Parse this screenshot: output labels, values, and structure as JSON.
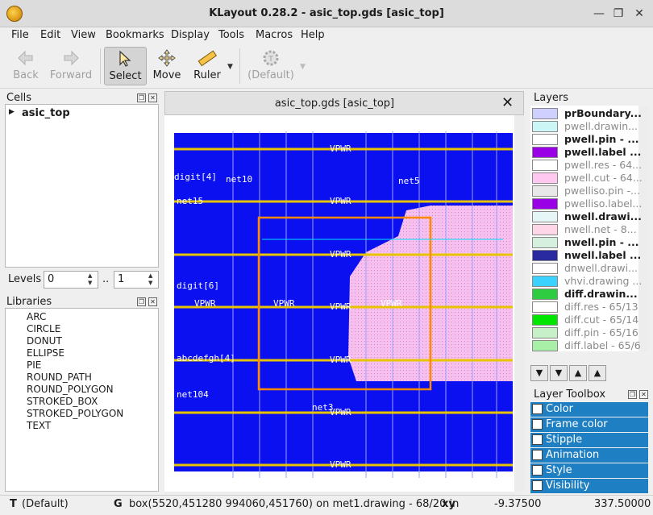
{
  "window": {
    "title": "KLayout 0.28.2 - asic_top.gds [asic_top]"
  },
  "menu": [
    "File",
    "Edit",
    "View",
    "Bookmarks",
    "Display",
    "Tools",
    "Macros",
    "Help"
  ],
  "toolbar": {
    "back": "Back",
    "forward": "Forward",
    "select": "Select",
    "move": "Move",
    "ruler": "Ruler",
    "default": "(Default)"
  },
  "cells": {
    "title": "Cells",
    "tree": [
      {
        "label": "asic_top"
      }
    ]
  },
  "levels": {
    "label": "Levels",
    "from": "0",
    "sep": "..",
    "to": "1"
  },
  "libraries": {
    "title": "Libraries",
    "items": [
      "ARC",
      "CIRCLE",
      "DONUT",
      "ELLIPSE",
      "PIE",
      "ROUND_PATH",
      "ROUND_POLYGON",
      "STROKED_BOX",
      "STROKED_POLYGON",
      "TEXT"
    ]
  },
  "canvas": {
    "tab_title": "asic_top.gds [asic_top]",
    "labels": [
      "VPWR",
      "VPWR",
      "VPWR",
      "VPWR",
      "VPWR",
      "VPWR",
      "VPWR",
      "VPWR",
      "VPWR",
      "VPWR",
      "net10",
      "net5",
      "net15",
      "net3",
      "net104",
      "digit[4]",
      "digit[6]",
      "abcdefgh[4]"
    ]
  },
  "layers": {
    "title": "Layers",
    "items": [
      {
        "name": "prBoundary...",
        "color": "#d0d0ff",
        "bold": true,
        "muted": false
      },
      {
        "name": "pwell.drawin...",
        "color": "#ccf6f6",
        "bold": false,
        "muted": true
      },
      {
        "name": "pwell.pin - ...",
        "color": "#ffffff",
        "bold": true,
        "muted": false
      },
      {
        "name": "pwell.label ...",
        "color": "#9900e6",
        "bold": true,
        "muted": false
      },
      {
        "name": "pwell.res - 64...",
        "color": "#ffffff",
        "bold": false,
        "muted": true
      },
      {
        "name": "pwell.cut - 64...",
        "color": "#ffc8f0",
        "bold": false,
        "muted": true
      },
      {
        "name": "pwelliso.pin -...",
        "color": "#e8e8e8",
        "bold": false,
        "muted": true
      },
      {
        "name": "pwelliso.label...",
        "color": "#9900e6",
        "bold": false,
        "muted": true
      },
      {
        "name": "nwell.drawi...",
        "color": "#e6f5f5",
        "bold": true,
        "muted": false
      },
      {
        "name": "nwell.net - 8...",
        "color": "#ffd6e8",
        "bold": false,
        "muted": true
      },
      {
        "name": "nwell.pin - ...",
        "color": "#d6f0e0",
        "bold": true,
        "muted": false
      },
      {
        "name": "nwell.label ...",
        "color": "#2a2aa0",
        "bold": true,
        "muted": false
      },
      {
        "name": "dnwell.drawi...",
        "color": "#ffffff",
        "bold": false,
        "muted": true
      },
      {
        "name": "vhvi.drawing ...",
        "color": "#3cd2ff",
        "bold": false,
        "muted": true
      },
      {
        "name": "diff.drawin...",
        "color": "#2ecc40",
        "bold": true,
        "muted": false
      },
      {
        "name": "diff.res - 65/13",
        "color": "#ffffff",
        "bold": false,
        "muted": true
      },
      {
        "name": "diff.cut - 65/14",
        "color": "#00e600",
        "bold": false,
        "muted": true
      },
      {
        "name": "diff.pin - 65/16",
        "color": "#c8f0c8",
        "bold": false,
        "muted": true
      },
      {
        "name": "diff.label - 65/6",
        "color": "#a8f0a8",
        "bold": false,
        "muted": true
      }
    ]
  },
  "toolbox": {
    "title": "Layer Toolbox",
    "items": [
      "Color",
      "Frame color",
      "Stipple",
      "Animation",
      "Style",
      "Visibility"
    ]
  },
  "status": {
    "t_key": "T",
    "t_val": "(Default)",
    "g_key": "G",
    "g_val": "box(5520,451280 994060,451760) on met1.drawing - 68/20 in",
    "xy_key": "xy",
    "x": "-9.37500",
    "y": "337.50000"
  }
}
